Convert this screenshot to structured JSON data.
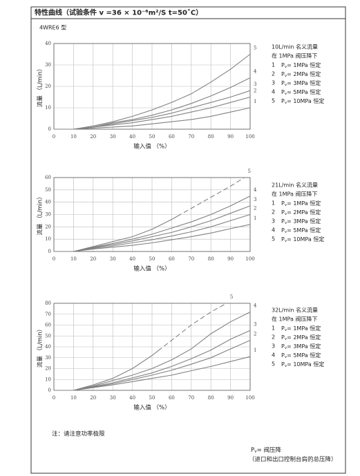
{
  "header": {
    "title": "特性曲线（试验条件 v =36 × 10⁻⁶m²/S  t=50˚C）"
  },
  "model_label": "4WRE6 型",
  "chart_data": [
    {
      "type": "line",
      "x": [
        0,
        10,
        20,
        30,
        40,
        50,
        60,
        70,
        80,
        90,
        100
      ],
      "xlim": [
        0,
        100
      ],
      "xticks": [
        0,
        10,
        20,
        30,
        40,
        50,
        60,
        70,
        80,
        90,
        100
      ],
      "ylim": [
        0,
        40
      ],
      "yticks": [
        0,
        10,
        20,
        30,
        40
      ],
      "grid": true,
      "xlabel": "输入值 （%）",
      "ylabel": "流量 （L/min）",
      "series": [
        {
          "name": "1",
          "color": "#808080",
          "values": [
            0,
            0,
            0.5,
            1,
            1.5,
            2.5,
            3.5,
            4.5,
            6,
            8,
            10
          ]
        },
        {
          "name": "2",
          "color": "#808080",
          "values": [
            0,
            0,
            1,
            2,
            3,
            4.5,
            6,
            8,
            10,
            12.5,
            15
          ]
        },
        {
          "name": "3",
          "color": "#808080",
          "values": [
            0,
            0,
            1,
            2.5,
            4,
            5.5,
            7.5,
            10,
            12.5,
            15,
            18
          ]
        },
        {
          "name": "4",
          "color": "#808080",
          "values": [
            0,
            0,
            1,
            3,
            4.5,
            6.5,
            9,
            12,
            15.5,
            19.5,
            24
          ]
        },
        {
          "name": "5",
          "color": "#808080",
          "values": [
            0,
            0,
            1.5,
            3.5,
            6,
            9,
            12.5,
            16.5,
            22,
            28,
            35
          ]
        }
      ],
      "legend": {
        "title": "10L/min 名义流量",
        "subtitle": "在 1MPa 阀压降下",
        "items": [
          {
            "index": "1",
            "symbol": "P",
            "subscript": "v",
            "text": "= 1MPa 恒定"
          },
          {
            "index": "2",
            "symbol": "P",
            "subscript": "v",
            "text": "= 2MPa 恒定"
          },
          {
            "index": "3",
            "symbol": "P",
            "subscript": "v",
            "text": "= 3MPa 恒定"
          },
          {
            "index": "4",
            "symbol": "P",
            "subscript": "v",
            "text": "= 5MPa 恒定"
          },
          {
            "index": "5",
            "symbol": "P",
            "subscript": "v",
            "text": "= 10MPa 恒定"
          }
        ]
      }
    },
    {
      "type": "line",
      "x": [
        0,
        10,
        20,
        30,
        40,
        50,
        60,
        70,
        80,
        90,
        100
      ],
      "xlim": [
        0,
        100
      ],
      "xticks": [
        0,
        10,
        20,
        30,
        40,
        50,
        60,
        70,
        80,
        90,
        100
      ],
      "ylim": [
        0,
        60
      ],
      "yticks": [
        0,
        10,
        20,
        30,
        40,
        50,
        60
      ],
      "grid": true,
      "xlabel": "输入值 （%）",
      "ylabel": "流量 （L/min）",
      "series": [
        {
          "name": "1",
          "color": "#808080",
          "values": [
            0,
            0,
            2,
            3.5,
            5,
            7,
            9.5,
            12,
            15,
            18.5,
            22
          ]
        },
        {
          "name": "2",
          "color": "#808080",
          "values": [
            0,
            0,
            2.5,
            4.5,
            7,
            9.5,
            12.5,
            16,
            20,
            25,
            30
          ]
        },
        {
          "name": "3",
          "color": "#808080",
          "values": [
            0,
            0,
            3,
            5.5,
            8.5,
            12,
            15.5,
            20,
            25,
            31,
            37
          ]
        },
        {
          "name": "4",
          "color": "#808080",
          "values": [
            0,
            0,
            3.5,
            6.5,
            10,
            14,
            19,
            24,
            30,
            37,
            45
          ]
        },
        {
          "name": "5",
          "color": "#808080",
          "x": [
            0,
            10,
            20,
            30,
            40,
            50,
            60,
            70,
            80,
            90,
            97
          ],
          "values": [
            0,
            0,
            4,
            8,
            12,
            18,
            26,
            35,
            44,
            53,
            60
          ],
          "dash_after": 65
        }
      ],
      "legend": {
        "title": "21L/min 名义流量",
        "subtitle": "在 1MPa 阀压降下",
        "items": [
          {
            "index": "1",
            "symbol": "P",
            "subscript": "v",
            "text": "= 1MPa 恒定"
          },
          {
            "index": "2",
            "symbol": "P",
            "subscript": "v",
            "text": "= 2MPa 恒定"
          },
          {
            "index": "3",
            "symbol": "P",
            "subscript": "v",
            "text": "= 3MPa 恒定"
          },
          {
            "index": "4",
            "symbol": "P",
            "subscript": "v",
            "text": "= 5MPa 恒定"
          },
          {
            "index": "5",
            "symbol": "P",
            "subscript": "v",
            "text": "= 10MPa 恒定"
          }
        ]
      }
    },
    {
      "type": "line",
      "x": [
        0,
        10,
        20,
        30,
        40,
        50,
        60,
        70,
        80,
        90,
        100
      ],
      "xlim": [
        0,
        100
      ],
      "xticks": [
        0,
        10,
        20,
        30,
        40,
        50,
        60,
        70,
        80,
        90,
        100
      ],
      "ylim": [
        0,
        80
      ],
      "yticks": [
        0,
        10,
        20,
        30,
        40,
        50,
        60,
        70,
        80
      ],
      "grid": true,
      "xlabel": "输入值 （%）",
      "ylabel": "流量 （L/min）",
      "series": [
        {
          "name": "1",
          "color": "#808080",
          "values": [
            0,
            0,
            2.5,
            5,
            8,
            11,
            14,
            18,
            22,
            26.5,
            31
          ]
        },
        {
          "name": "2",
          "color": "#808080",
          "values": [
            0,
            0,
            3,
            6,
            10,
            14,
            18.5,
            24,
            30,
            38,
            46
          ]
        },
        {
          "name": "3",
          "color": "#808080",
          "values": [
            0,
            0,
            3.5,
            7,
            11.5,
            16,
            22,
            29,
            37,
            47,
            55
          ]
        },
        {
          "name": "4",
          "color": "#808080",
          "values": [
            0,
            0,
            4,
            9,
            14,
            20,
            28,
            38,
            52,
            63,
            72
          ]
        },
        {
          "name": "5",
          "color": "#808080",
          "x": [
            0,
            10,
            20,
            30,
            40,
            50,
            60,
            70,
            80,
            88
          ],
          "values": [
            0,
            0,
            5,
            11,
            20,
            32,
            46,
            60,
            72,
            80
          ],
          "dash_after": 55
        }
      ],
      "legend": {
        "title": "32L/min 名义流量",
        "subtitle": "在 1MPa 阀压降下",
        "items": [
          {
            "index": "1",
            "symbol": "P",
            "subscript": "v",
            "text": "= 1MPa 恒定"
          },
          {
            "index": "2",
            "symbol": "P",
            "subscript": "v",
            "text": "= 2MPa 恒定"
          },
          {
            "index": "3",
            "symbol": "P",
            "subscript": "v",
            "text": "= 3MPa 恒定"
          },
          {
            "index": "4",
            "symbol": "P",
            "subscript": "v",
            "text": "= 5MPa 恒定"
          },
          {
            "index": "5",
            "symbol": "P",
            "subscript": "v",
            "text": "= 10MPa 恒定"
          }
        ]
      }
    }
  ],
  "notes": {
    "power_limit": "注：请注意功率极限",
    "pv_definition": {
      "symbol": "P",
      "subscript": "v",
      "text": "= 阀压降"
    },
    "pv_explanation": "（进口和出口控制台肩的总压降）"
  }
}
